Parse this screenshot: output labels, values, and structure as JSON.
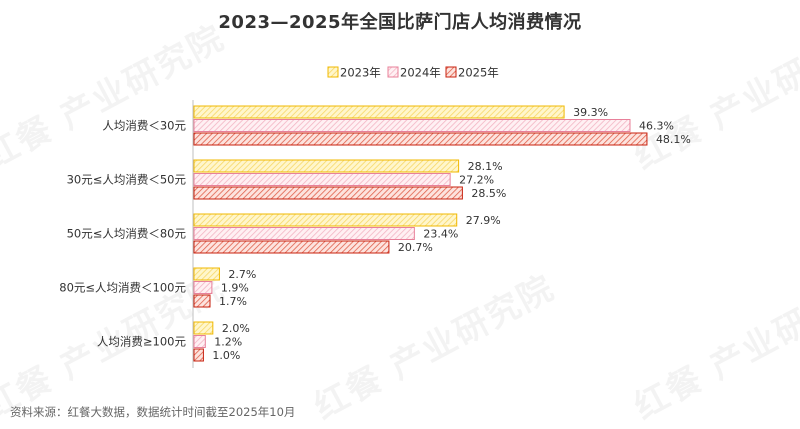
{
  "watermark": "红餐 产业研究院",
  "source_note": "资料来源：红餐大数据，数据统计时间截至2025年10月",
  "chart_data": {
    "type": "bar",
    "orientation": "horizontal",
    "title": "2023—2025年全国比萨门店人均消费情况",
    "categories": [
      "人均消费＜30元",
      "30元≤人均消费＜50元",
      "50元≤人均消费＜80元",
      "80元≤人均消费＜100元",
      "人均消费≥100元"
    ],
    "series": [
      {
        "name": "2023年",
        "values": [
          39.3,
          28.1,
          27.9,
          2.7,
          2.0
        ],
        "labels": [
          "39.3%",
          "28.1%",
          "27.9%",
          "2.7%",
          "2.0%"
        ]
      },
      {
        "name": "2024年",
        "values": [
          46.3,
          27.2,
          23.4,
          1.9,
          1.2
        ],
        "labels": [
          "46.3%",
          "27.2%",
          "23.4%",
          "1.9%",
          "1.2%"
        ]
      },
      {
        "name": "2025年",
        "values": [
          48.1,
          28.5,
          20.7,
          1.7,
          1.0
        ],
        "labels": [
          "48.1%",
          "28.5%",
          "20.7%",
          "1.7%",
          "1.0%"
        ]
      }
    ],
    "unit": "%",
    "xlim": [
      0,
      50
    ],
    "legend_position": "top-center",
    "grid": false,
    "colors": {
      "2023年": {
        "stroke": "#f0b800",
        "fill": "#fff6cc",
        "hatch": "#f7d866"
      },
      "2024年": {
        "stroke": "#e8809a",
        "fill": "#fff0f3",
        "hatch": "#f3b4c3"
      },
      "2025年": {
        "stroke": "#c8200e",
        "fill": "#fde3de",
        "hatch": "#e0604a"
      }
    }
  }
}
